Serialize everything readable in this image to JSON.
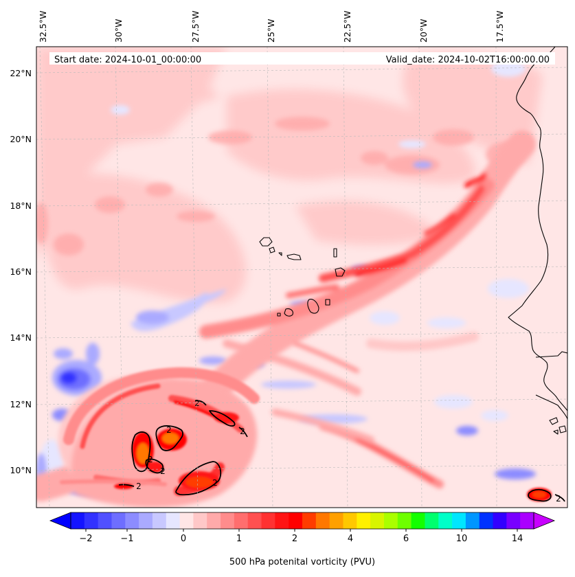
{
  "map": {
    "start_date_text": "Start date: 2024-10-01_00:00:00",
    "valid_date_text": "Valid_date: 2024-10-02T16:00:00.00",
    "lon_labels": [
      "32.5°W",
      "30°W",
      "27.5°W",
      "25°W",
      "22.5°W",
      "20°W",
      "17.5°W"
    ],
    "lat_labels": [
      "22°N",
      "20°N",
      "18°N",
      "16°N",
      "14°N",
      "12°N",
      "10°N"
    ],
    "contour_labels": [
      "2",
      "2",
      "2",
      "2",
      "2",
      "2",
      "2",
      "2"
    ],
    "gridlines": "dashed light gray",
    "coastline_color": "#000000"
  },
  "colorbar": {
    "tick_labels": [
      "−2",
      "−1",
      "0",
      "1",
      "2",
      "4",
      "6",
      "10",
      "14"
    ],
    "label": "500 hPa potenital vorticity (PVU)",
    "extend": "both",
    "colors": [
      "#1414ff",
      "#3232ff",
      "#5050ff",
      "#6e6eff",
      "#8c8cff",
      "#aaaaff",
      "#c8c8ff",
      "#e6e6ff",
      "#ffe6e6",
      "#ffc8c8",
      "#ffaaaa",
      "#ff8c8c",
      "#ff6e6e",
      "#ff5050",
      "#ff3232",
      "#ff1414",
      "#ff0000",
      "#ff3c00",
      "#ff7800",
      "#ffa000",
      "#ffc800",
      "#fff000",
      "#d8f500",
      "#aaff00",
      "#6eff00",
      "#14ff00",
      "#00ff6e",
      "#00ffc8",
      "#00e6ff",
      "#0096ff",
      "#0032ff",
      "#3200ff",
      "#7800ff",
      "#aa00ff"
    ],
    "under_color": "#0000ff",
    "over_color": "#c800ff"
  }
}
